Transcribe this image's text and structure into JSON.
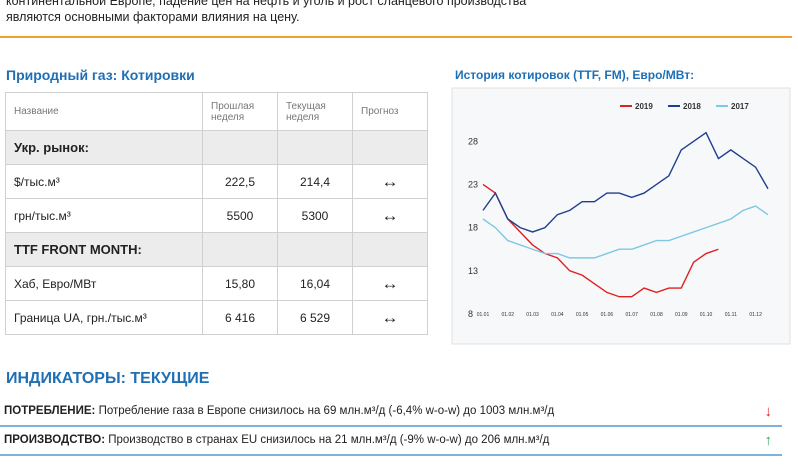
{
  "intro": {
    "lines": [
      "континентальной Европе, падение цен на нефть и уголь и рост сланцевого производства",
      "являются основными факторами влияния на цену."
    ]
  },
  "quotes": {
    "title": "Природный газ: Котировки",
    "header": [
      "Название",
      "Прошлая неделя",
      "Текущая неделя",
      "Прогноз"
    ],
    "rows": [
      {
        "section": "Укр. рынок:"
      },
      {
        "cells": [
          "$/тыс.м³",
          "222,5",
          "214,4",
          "↔"
        ]
      },
      {
        "cells": [
          "грн/тыс.м³",
          "5500",
          "5300",
          "↔"
        ]
      },
      {
        "section": "TTF FRONT MONTH:"
      },
      {
        "cells": [
          "Хаб, Евро/МВт",
          "15,80",
          "16,04",
          "↔"
        ]
      },
      {
        "cells": [
          "Граница UA, грн./тыс.м³",
          "6 416",
          "6 529",
          "↔"
        ]
      }
    ]
  },
  "chart_data": {
    "type": "line",
    "title": "История котировок (TTF, FM), Евро/МВт:",
    "categories": [
      "01.01",
      null,
      "01.02",
      null,
      "01.03",
      null,
      "01.04",
      null,
      "01.05",
      null,
      "01.06",
      null,
      "01.07",
      null,
      "01.08",
      null,
      "01.09",
      null,
      "01.10",
      null,
      "01.11",
      null,
      "01.12",
      null
    ],
    "series": [
      {
        "name": "2019",
        "color": "#e02020",
        "values": [
          23,
          22,
          19,
          17.5,
          16,
          15,
          14.5,
          13,
          12.5,
          11.5,
          10.5,
          10,
          10,
          11,
          10.5,
          11,
          11,
          14,
          15,
          15.5,
          null,
          null,
          null,
          null
        ]
      },
      {
        "name": "2018",
        "color": "#1f3f8f",
        "values": [
          20,
          22,
          19,
          18,
          17.5,
          18,
          19.5,
          20,
          21,
          21,
          22,
          22,
          21.5,
          22,
          23,
          24,
          27,
          28,
          29,
          26,
          27,
          26,
          25,
          22.5
        ]
      },
      {
        "name": "2017",
        "color": "#7ec8e3",
        "values": [
          19,
          18,
          16.5,
          16,
          15.5,
          15,
          15,
          14.5,
          14.5,
          14.5,
          15,
          15.5,
          15.5,
          16,
          16.5,
          16.5,
          17,
          17.5,
          18,
          18.5,
          19,
          20,
          20.5,
          19.5
        ]
      }
    ],
    "ylim": [
      8,
      30
    ],
    "yticks": [
      8,
      13,
      18,
      23,
      28
    ],
    "grid": false,
    "legend": "top"
  },
  "indicators": {
    "title": "ИНДИКАТОРЫ: ТЕКУЩИЕ",
    "rows": [
      {
        "label": "ПОТРЕБЛЕНИЕ:",
        "text": "Потребление газа в Европе снизилось на 69 млн.м³/д (-6,4% w-o-w) до 1003 млн.м³/д",
        "arrow": "↓",
        "color": "#e02020"
      },
      {
        "label": "ПРОИЗВОДСТВО:",
        "text": "Производство в странах EU снизилось на 21 млн.м³/д (-9% w-o-w) до 206 млн.м³/д",
        "arrow": "↑",
        "color": "#2eaa55"
      }
    ]
  }
}
